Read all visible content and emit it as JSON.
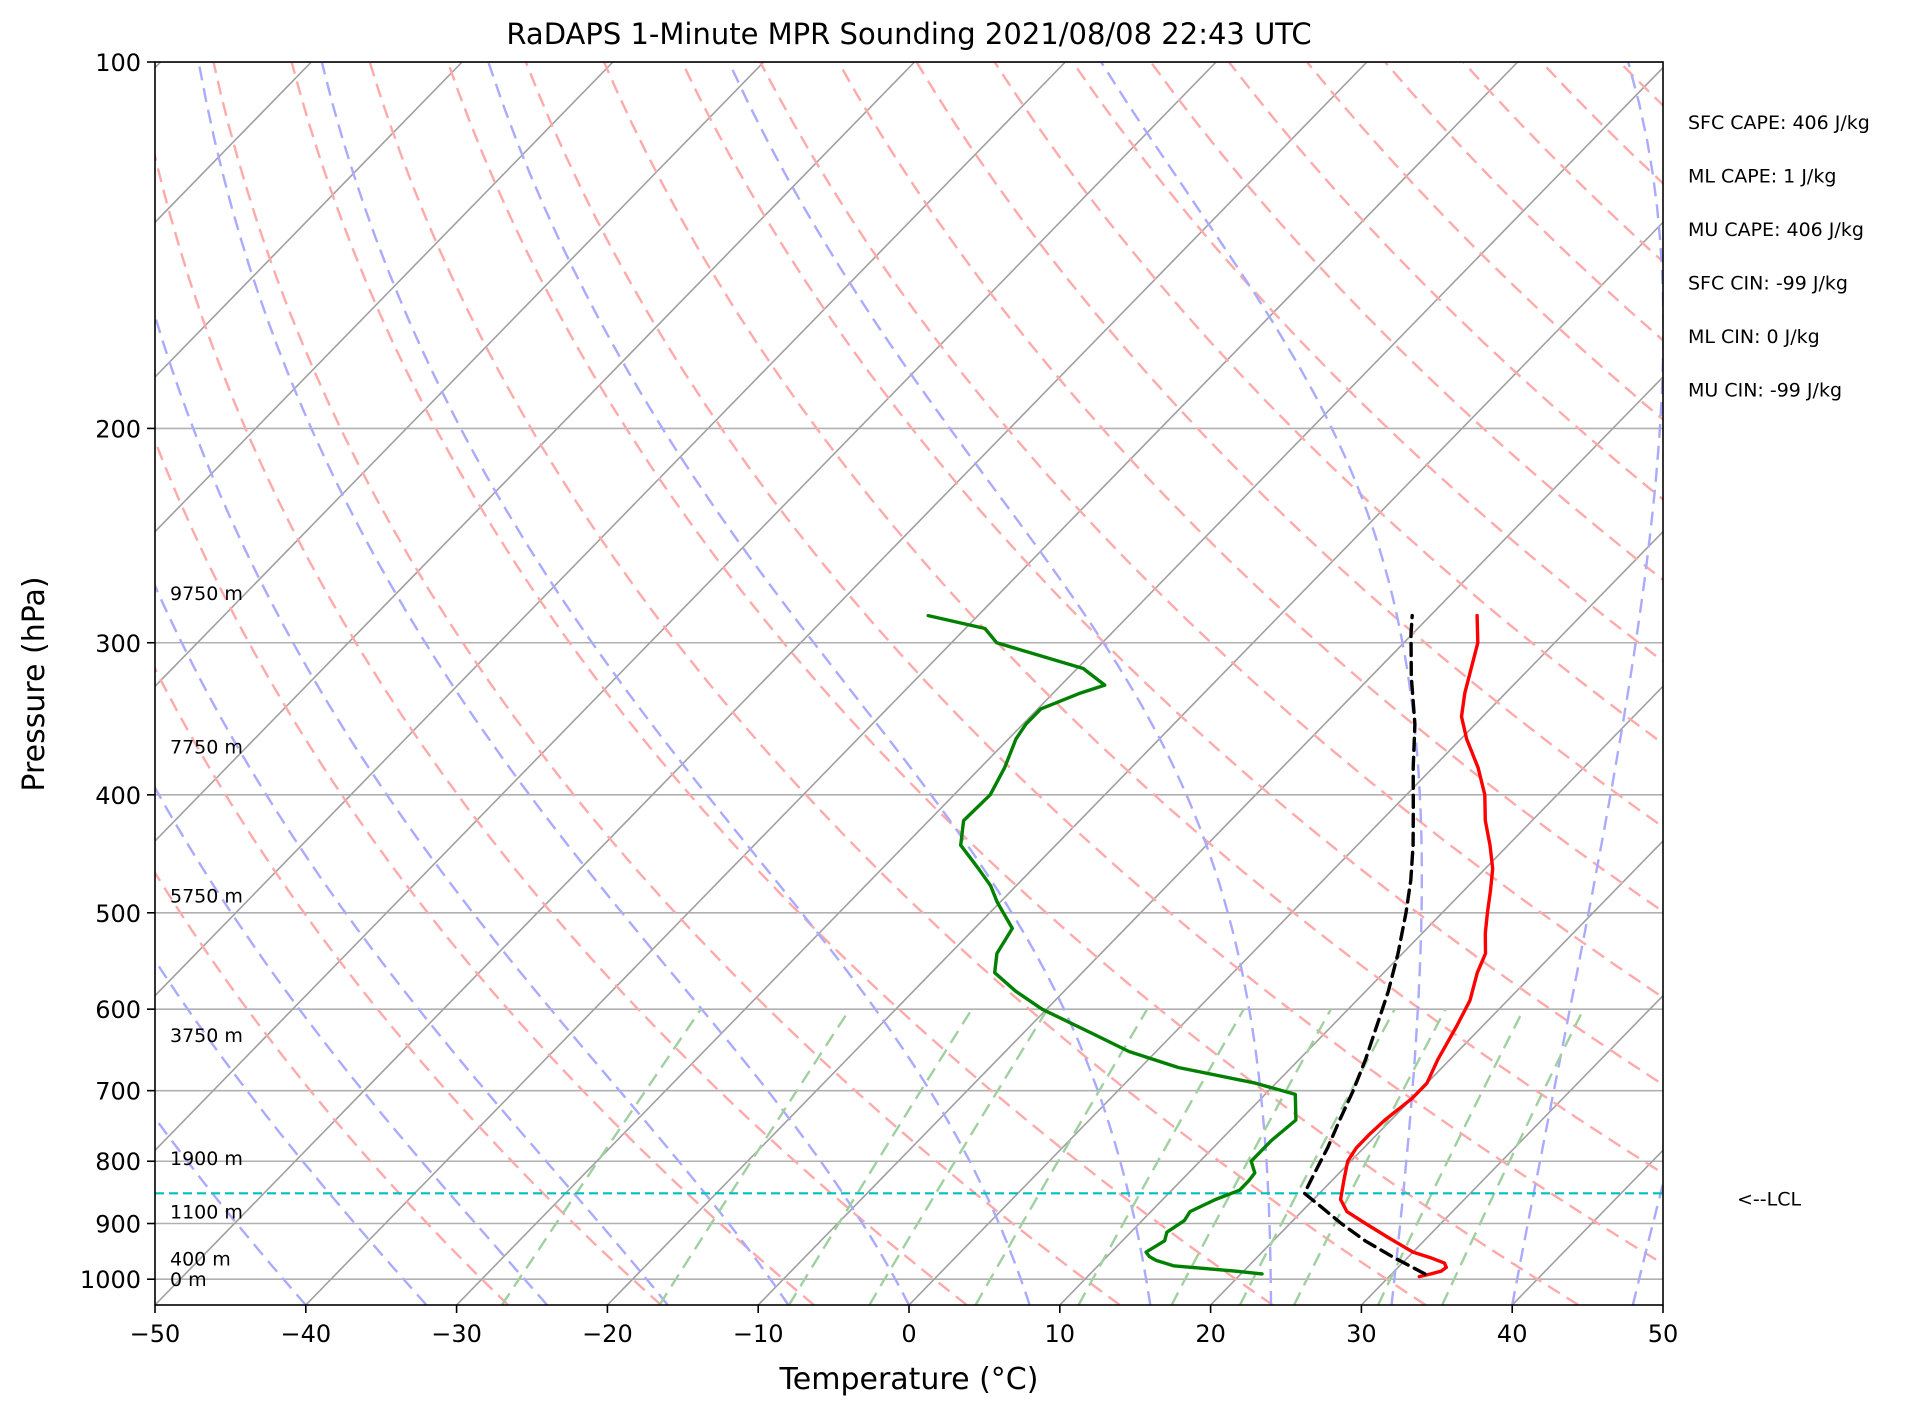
{
  "chart_data": {
    "type": "line",
    "subtype": "skew-t log-p sounding",
    "title": "RaDAPS 1-Minute MPR Sounding 2021/08/08 22:43 UTC",
    "xlabel": "Temperature (°C)",
    "ylabel": "Pressure (hPa)",
    "xlim": [
      -50,
      50
    ],
    "ylim": [
      1050,
      100
    ],
    "y_scale": "log",
    "grid": true,
    "x_ticks": [
      -50,
      -40,
      -30,
      -20,
      -10,
      0,
      10,
      20,
      30,
      40,
      50
    ],
    "x_tick_labels": [
      "−50",
      "−40",
      "−30",
      "−20",
      "−10",
      "0",
      "10",
      "20",
      "30",
      "40",
      "50"
    ],
    "y_ticks": [
      1000,
      900,
      800,
      700,
      600,
      500,
      400,
      300,
      200,
      100
    ],
    "y_tick_labels": [
      "1000",
      "900",
      "800",
      "700",
      "600",
      "500",
      "400",
      "300",
      "200",
      "100"
    ],
    "series": [
      {
        "role": "temperature",
        "color": "#ff0000",
        "points": [
          [
            995,
            32.0
          ],
          [
            990,
            32.6
          ],
          [
            985,
            33.1
          ],
          [
            978,
            33.2
          ],
          [
            970,
            32.8
          ],
          [
            960,
            31.5
          ],
          [
            950,
            30.0
          ],
          [
            925,
            27.5
          ],
          [
            900,
            25.0
          ],
          [
            880,
            23.0
          ],
          [
            860,
            21.8
          ],
          [
            830,
            20.8
          ],
          [
            800,
            19.8
          ],
          [
            780,
            19.5
          ],
          [
            760,
            19.5
          ],
          [
            740,
            19.6
          ],
          [
            710,
            20.0
          ],
          [
            690,
            20.0
          ],
          [
            660,
            19.2
          ],
          [
            620,
            18.3
          ],
          [
            590,
            17.5
          ],
          [
            560,
            16.2
          ],
          [
            540,
            15.5
          ],
          [
            520,
            14.2
          ],
          [
            500,
            13.0
          ],
          [
            480,
            11.8
          ],
          [
            460,
            10.5
          ],
          [
            440,
            8.8
          ],
          [
            420,
            6.9
          ],
          [
            400,
            5.2
          ],
          [
            380,
            3.0
          ],
          [
            360,
            0.4
          ],
          [
            345,
            -1.4
          ],
          [
            330,
            -2.7
          ],
          [
            300,
            -5.1
          ],
          [
            285,
            -6.9
          ]
        ]
      },
      {
        "role": "dewpoint",
        "color": "#008000",
        "points": [
          [
            990,
            21.4
          ],
          [
            985,
            19.5
          ],
          [
            975,
            15.0
          ],
          [
            965,
            13.5
          ],
          [
            958,
            12.8
          ],
          [
            950,
            12.3
          ],
          [
            930,
            12.8
          ],
          [
            915,
            12.4
          ],
          [
            895,
            12.8
          ],
          [
            880,
            12.6
          ],
          [
            860,
            13.5
          ],
          [
            845,
            14.5
          ],
          [
            830,
            14.5
          ],
          [
            818,
            14.4
          ],
          [
            800,
            13.4
          ],
          [
            770,
            13.4
          ],
          [
            740,
            13.7
          ],
          [
            705,
            12.0
          ],
          [
            690,
            8.6
          ],
          [
            670,
            2.5
          ],
          [
            650,
            -1.8
          ],
          [
            630,
            -5.1
          ],
          [
            600,
            -10.3
          ],
          [
            580,
            -13.2
          ],
          [
            560,
            -15.8
          ],
          [
            540,
            -16.9
          ],
          [
            515,
            -17.5
          ],
          [
            490,
            -20.2
          ],
          [
            475,
            -21.7
          ],
          [
            460,
            -23.6
          ],
          [
            440,
            -26.3
          ],
          [
            420,
            -27.7
          ],
          [
            400,
            -27.6
          ],
          [
            380,
            -28.4
          ],
          [
            360,
            -29.5
          ],
          [
            350,
            -29.8
          ],
          [
            340,
            -29.8
          ],
          [
            330,
            -28.2
          ],
          [
            325,
            -27.1
          ],
          [
            315,
            -29.6
          ],
          [
            300,
            -37.0
          ],
          [
            292,
            -38.7
          ],
          [
            285,
            -43.3
          ]
        ]
      },
      {
        "role": "parcel profile",
        "color": "#000000",
        "dash": true,
        "points": [
          [
            990,
            32.2
          ],
          [
            960,
            29.1
          ],
          [
            930,
            26.1
          ],
          [
            900,
            23.4
          ],
          [
            870,
            20.8
          ],
          [
            850,
            19.0
          ],
          [
            820,
            18.4
          ],
          [
            780,
            17.6
          ],
          [
            740,
            16.6
          ],
          [
            700,
            15.6
          ],
          [
            660,
            14.4
          ],
          [
            620,
            13.0
          ],
          [
            580,
            11.5
          ],
          [
            540,
            9.7
          ],
          [
            500,
            7.6
          ],
          [
            470,
            5.8
          ],
          [
            440,
            3.7
          ],
          [
            410,
            1.3
          ],
          [
            380,
            -1.3
          ],
          [
            350,
            -4.0
          ],
          [
            320,
            -7.3
          ],
          [
            295,
            -10.1
          ],
          [
            285,
            -11.2
          ]
        ]
      }
    ],
    "lcl": {
      "pressure": 850,
      "label": "<--LCL",
      "color": "#00bfbf"
    },
    "height_labels": [
      {
        "pressure": 273,
        "text": "9750 m"
      },
      {
        "pressure": 365,
        "text": "7750 m"
      },
      {
        "pressure": 484,
        "text": "5750 m"
      },
      {
        "pressure": 630,
        "text": "3750 m"
      },
      {
        "pressure": 795,
        "text": "1900 m"
      },
      {
        "pressure": 880,
        "text": "1100 m"
      },
      {
        "pressure": 962,
        "text": "400 m"
      },
      {
        "pressure": 1000,
        "text": "0 m"
      }
    ],
    "stats": [
      "SFC CAPE: 406 J/kg",
      "ML CAPE: 1 J/kg",
      "MU CAPE: 406 J/kg",
      "SFC CIN: -99 J/kg",
      "ML CIN: 0 J/kg",
      "MU CIN: -99 J/kg"
    ],
    "background_lines": {
      "isotherms_color": "#a0a0a0",
      "dry_adiabats_color": "#ffaaaa",
      "moist_adiabats_color": "#aaaaff",
      "mixing_ratio_color": "#a0d0a0"
    }
  }
}
